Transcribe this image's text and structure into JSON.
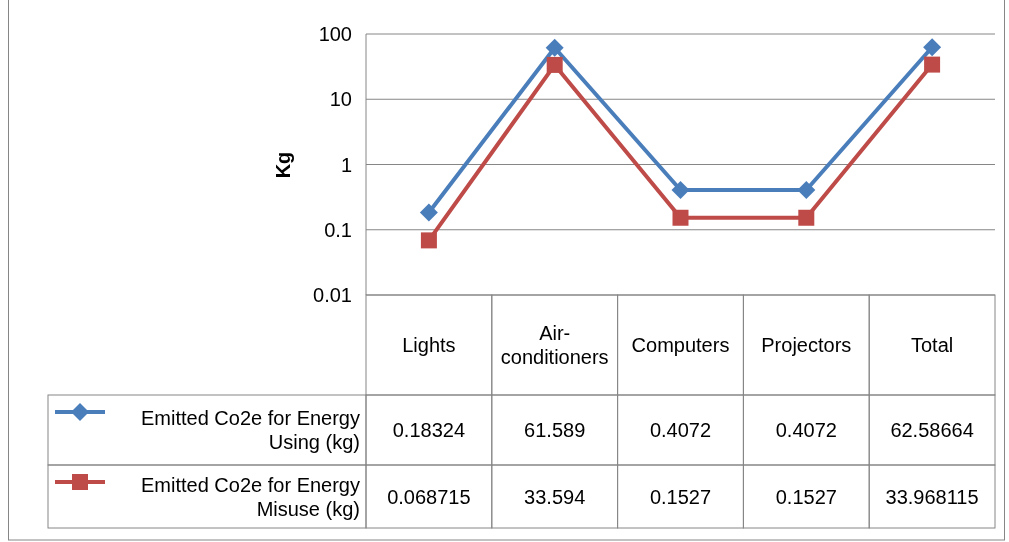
{
  "chart_data": {
    "type": "line",
    "ylabel": "Kg",
    "categories": [
      "Lights",
      "Air-conditioners",
      "Computers",
      "Projectors",
      "Total"
    ],
    "series": [
      {
        "name": "Emitted Co2e for Energy Using (kg)",
        "color": "#4a7ebb",
        "marker": "diamond",
        "values": [
          0.18324,
          61.589,
          0.4072,
          0.4072,
          62.58664
        ]
      },
      {
        "name": "Emitted Co2e for Energy Misuse (kg)",
        "color": "#be4b48",
        "marker": "square",
        "values": [
          0.068715,
          33.594,
          0.1527,
          0.1527,
          33.968115
        ]
      }
    ],
    "log": true,
    "ylim": [
      0.01,
      100
    ],
    "yticks": [
      0.01,
      0.1,
      1,
      10,
      100
    ],
    "grid": "y",
    "legend": "bottom",
    "data_labels": true
  }
}
